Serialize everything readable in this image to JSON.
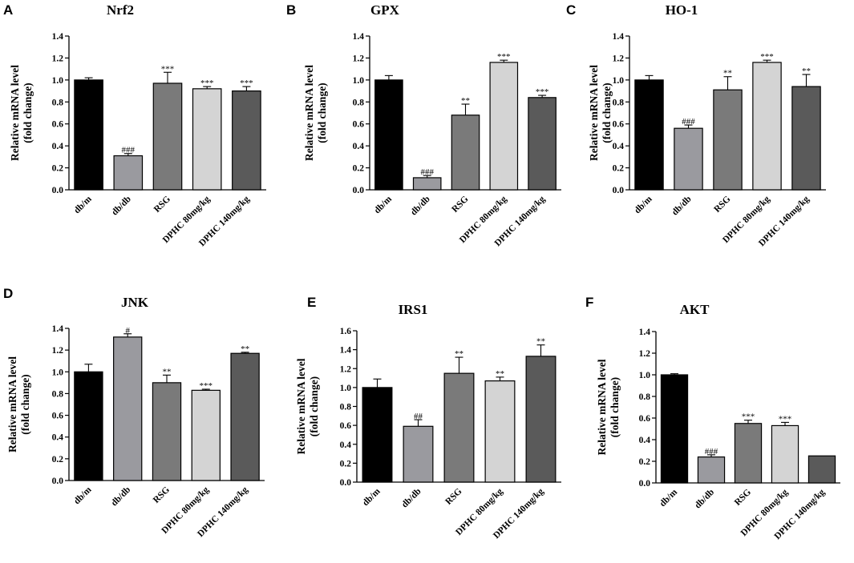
{
  "figure": {
    "ylabel_line1": "Relative mRNA level",
    "ylabel_line2": "(fold change)",
    "group_colors": [
      "#000000",
      "#9a9a9f",
      "#7a7a7a",
      "#d4d4d4",
      "#5a5a5a"
    ]
  },
  "chart_data": [
    {
      "type": "bar",
      "panel": "A",
      "title": "Nrf2",
      "ylabel": "Relative mRNA level (fold change)",
      "categories": [
        "db/m",
        "db/db",
        "RSG",
        "DPHC 80mg/kg",
        "DPHC 140mg/kg"
      ],
      "values": [
        1.0,
        0.31,
        0.97,
        0.92,
        0.9
      ],
      "errors": [
        0.02,
        0.02,
        0.1,
        0.02,
        0.04
      ],
      "annotations": [
        "",
        "###",
        "***",
        "***",
        "***"
      ],
      "ylim": [
        0,
        1.4
      ],
      "yticks": [
        "0.0",
        "0.2",
        "0.4",
        "0.6",
        "0.8",
        "1.0",
        "1.2",
        "1.4"
      ]
    },
    {
      "type": "bar",
      "panel": "B",
      "title": "GPX",
      "ylabel": "Relative mRNA level (fold change)",
      "categories": [
        "db/m",
        "db/db",
        "RSG",
        "DPHC 80mg/kg",
        "DPHC 140mg/kg"
      ],
      "values": [
        1.0,
        0.11,
        0.68,
        1.16,
        0.84
      ],
      "errors": [
        0.04,
        0.02,
        0.1,
        0.02,
        0.02
      ],
      "annotations": [
        "",
        "###",
        "**",
        "***",
        "***"
      ],
      "ylim": [
        0,
        1.4
      ],
      "yticks": [
        "0.0",
        "0.2",
        "0.4",
        "0.6",
        "0.8",
        "1.0",
        "1.2",
        "1.4"
      ]
    },
    {
      "type": "bar",
      "panel": "C",
      "title": "HO-1",
      "ylabel": "Relative mRNA level (fold change)",
      "categories": [
        "db/m",
        "db/db",
        "RSG",
        "DPHC 80mg/kg",
        "DPHC 140mg/kg"
      ],
      "values": [
        1.0,
        0.56,
        0.91,
        1.16,
        0.94
      ],
      "errors": [
        0.04,
        0.03,
        0.12,
        0.02,
        0.11
      ],
      "annotations": [
        "",
        "###",
        "**",
        "***",
        "**"
      ],
      "ylim": [
        0,
        1.4
      ],
      "yticks": [
        "0.0",
        "0.2",
        "0.4",
        "0.6",
        "0.8",
        "1.0",
        "1.2",
        "1.4"
      ]
    },
    {
      "type": "bar",
      "panel": "D",
      "title": "JNK",
      "ylabel": "Relative mRNA level (fold change)",
      "categories": [
        "db/m",
        "db/db",
        "RSG",
        "DPHC 80mg/kg",
        "DPHC 140mg/kg"
      ],
      "values": [
        1.0,
        1.32,
        0.9,
        0.83,
        1.17
      ],
      "errors": [
        0.07,
        0.03,
        0.07,
        0.01,
        0.01
      ],
      "annotations": [
        "",
        "#",
        "**",
        "***",
        "**"
      ],
      "ylim": [
        0,
        1.4
      ],
      "yticks": [
        "0.0",
        "0.2",
        "0.4",
        "0.6",
        "0.8",
        "1.0",
        "1.2",
        "1.4"
      ]
    },
    {
      "type": "bar",
      "panel": "E",
      "title": "IRS1",
      "ylabel": "Relative mRNA level (fold change)",
      "categories": [
        "db/m",
        "db/db",
        "RSG",
        "DPHC 80mg/kg",
        "DPHC 140mg/kg"
      ],
      "values": [
        1.0,
        0.59,
        1.15,
        1.07,
        1.33
      ],
      "errors": [
        0.09,
        0.07,
        0.17,
        0.04,
        0.12
      ],
      "annotations": [
        "",
        "##",
        "**",
        "**",
        "**"
      ],
      "ylim": [
        0,
        1.6
      ],
      "yticks": [
        "0.0",
        "0.2",
        "0.4",
        "0.6",
        "0.8",
        "1.0",
        "1.2",
        "1.4",
        "1.6"
      ]
    },
    {
      "type": "bar",
      "panel": "F",
      "title": "AKT",
      "ylabel": "Relative mRNA level (fold change)",
      "categories": [
        "db/m",
        "db/db",
        "RSG",
        "DPHC 80mg/kg",
        "DPHC 140mg/kg"
      ],
      "values": [
        1.0,
        0.24,
        0.55,
        0.53,
        0.25
      ],
      "errors": [
        0.01,
        0.02,
        0.03,
        0.03,
        0.0
      ],
      "annotations": [
        "",
        "###",
        "***",
        "***",
        ""
      ],
      "ylim": [
        0,
        1.4
      ],
      "yticks": [
        "0.0",
        "0.2",
        "0.4",
        "0.6",
        "0.8",
        "1.0",
        "1.2",
        "1.4"
      ]
    }
  ]
}
